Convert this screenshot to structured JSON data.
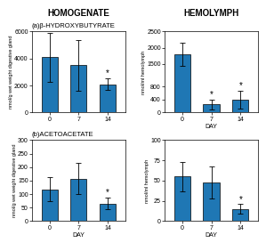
{
  "chart_data": [
    {
      "type": "bar",
      "title": "HOMOGENATE",
      "subtitle": "(a)β-HYDROXYBUTYRATE",
      "categories": [
        "0",
        "7",
        "14"
      ],
      "values": [
        4100,
        3500,
        2100
      ],
      "errors": [
        1800,
        1900,
        450
      ],
      "ylim": [
        0,
        6000
      ],
      "yticks": [
        0,
        2000,
        4000,
        6000
      ],
      "ylabel": "nmol/g wet weight digestive gland",
      "annotations": [
        {
          "category": "14",
          "text": "*"
        }
      ]
    },
    {
      "type": "bar",
      "title": "HEMOLYMPH",
      "categories": [
        "0",
        "7",
        "14"
      ],
      "values": [
        1800,
        250,
        390
      ],
      "errors": [
        350,
        150,
        280
      ],
      "ylim": [
        0,
        2500
      ],
      "yticks": [
        0,
        400,
        800,
        1500,
        2000,
        2500
      ],
      "xlabel": "DAY",
      "ylabel": "nmol/ml hemolymph",
      "annotations": [
        {
          "category": "7",
          "text": "*"
        },
        {
          "category": "14",
          "text": "*"
        }
      ]
    },
    {
      "type": "bar",
      "subtitle": "(b)ACETOACETATE",
      "categories": [
        "0",
        "7",
        "14"
      ],
      "values": [
        118,
        158,
        65
      ],
      "errors": [
        45,
        58,
        22
      ],
      "ylim": [
        0,
        300
      ],
      "yticks": [
        0,
        50,
        100,
        150,
        200,
        250,
        300
      ],
      "xlabel": "DAY",
      "ylabel": "nmol/g wet weight digestive gland",
      "annotations": [
        {
          "category": "14",
          "text": "*"
        }
      ]
    },
    {
      "type": "bar",
      "categories": [
        "0",
        "7",
        "14"
      ],
      "values": [
        55,
        48,
        15
      ],
      "errors": [
        18,
        20,
        6
      ],
      "ylim": [
        0,
        100
      ],
      "yticks": [
        0,
        25,
        50,
        75,
        100
      ],
      "xlabel": "DAY",
      "ylabel": "nmol/ml hemolymph",
      "annotations": [
        {
          "category": "14",
          "text": "*"
        }
      ]
    }
  ]
}
